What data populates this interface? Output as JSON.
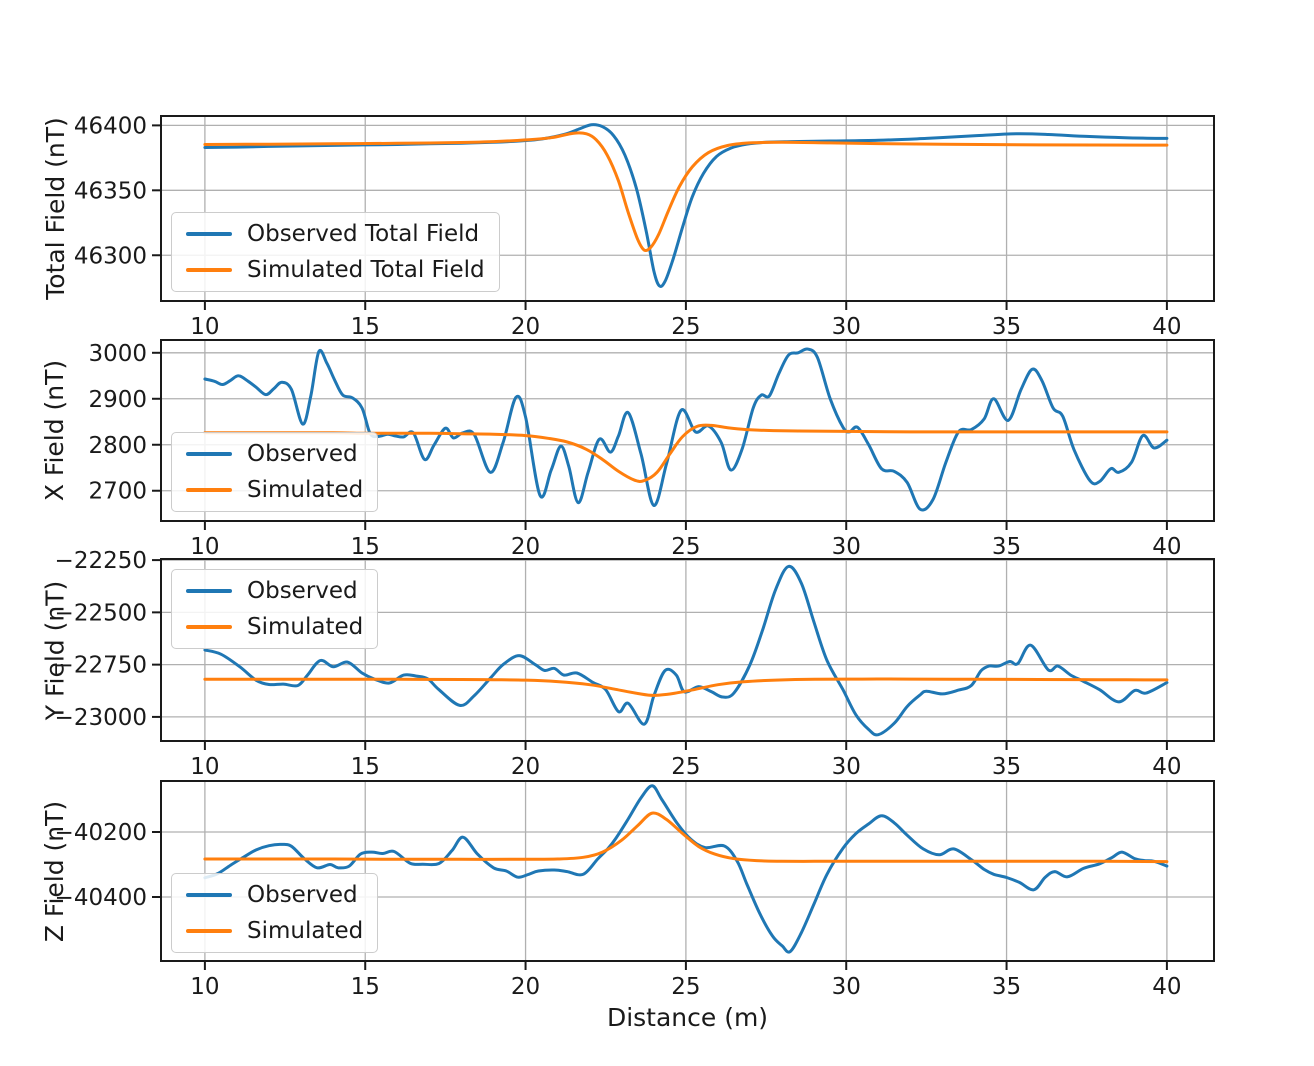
{
  "figure": {
    "xlabel": "Distance (m)",
    "background": "#ffffff",
    "colors": {
      "observed": "#1f77b4",
      "simulated": "#ff7f0e",
      "grid": "#b0b0b0",
      "spine": "#1a1a1a",
      "text": "#1a1a1a",
      "legend_border": "#cccccc"
    }
  },
  "chart_data": [
    {
      "type": "line",
      "ylabel": "Total Field (nT)",
      "xlim": [
        8.6,
        41.5
      ],
      "ylim": [
        46264,
        46408
      ],
      "xticks": [
        10,
        15,
        20,
        25,
        30,
        35,
        40
      ],
      "yticks": [
        46300,
        46350,
        46400
      ],
      "grid": true,
      "legend": {
        "position": "lower-left",
        "entries": [
          "Observed Total Field",
          "Simulated Total Field"
        ]
      },
      "series": [
        {
          "name": "Observed Total Field",
          "color": "#1f77b4",
          "x": [
            10,
            11,
            12,
            13,
            14,
            15,
            16,
            17,
            18,
            19,
            19.8,
            20.5,
            21.2,
            21.7,
            22.05,
            22.4,
            22.75,
            23.1,
            23.45,
            23.75,
            24.0,
            24.17,
            24.35,
            24.6,
            24.9,
            25.2,
            25.55,
            25.95,
            26.4,
            26.9,
            27.5,
            28.3,
            29.5,
            31,
            32.5,
            34,
            35.3,
            36.3,
            37.5,
            38.7,
            40
          ],
          "y": [
            46383,
            46383.3,
            46383.8,
            46384.2,
            46384.6,
            46385,
            46385.3,
            46385.8,
            46386.3,
            46387,
            46388,
            46389.5,
            46393,
            46397.5,
            46400.5,
            46399,
            46392,
            46377,
            46352,
            46320,
            46288,
            46276.5,
            46280,
            46297,
            46322,
            46345,
            46363,
            46376,
            46382.5,
            46385.5,
            46387,
            46387.5,
            46388,
            46388.5,
            46390,
            46392,
            46393.5,
            46393,
            46391.5,
            46390.5,
            46390
          ]
        },
        {
          "name": "Simulated Total Field",
          "color": "#ff7f0e",
          "x": [
            10,
            12,
            14,
            16,
            17.5,
            19,
            20,
            20.8,
            21.5,
            21.9,
            22.2,
            22.55,
            22.9,
            23.2,
            23.5,
            23.7,
            23.9,
            24.15,
            24.45,
            24.8,
            25.2,
            25.7,
            26.3,
            27,
            28,
            29.5,
            31,
            33,
            36,
            40
          ],
          "y": [
            46385.3,
            46385.5,
            46385.8,
            46386.2,
            46386.6,
            46387.5,
            46388.8,
            46390.5,
            46394,
            46393.5,
            46389,
            46377,
            46357,
            46333,
            46312,
            46304,
            46306,
            46316,
            46334,
            46353,
            46368,
            46379,
            46384.5,
            46386.5,
            46387,
            46386.5,
            46386,
            46385.5,
            46385,
            46384.8
          ]
        }
      ]
    },
    {
      "type": "line",
      "ylabel": "X Field (nT)",
      "xlim": [
        8.6,
        41.5
      ],
      "ylim": [
        2632,
        3030
      ],
      "xticks": [
        10,
        15,
        20,
        25,
        30,
        35,
        40
      ],
      "yticks": [
        2700,
        2800,
        2900,
        3000
      ],
      "grid": true,
      "legend": {
        "position": "lower-left",
        "entries": [
          "Observed",
          "Simulated"
        ]
      },
      "series": [
        {
          "name": "Observed",
          "color": "#1f77b4",
          "x": [
            10,
            10.3,
            10.55,
            10.8,
            11.05,
            11.35,
            11.6,
            11.9,
            12.15,
            12.4,
            12.7,
            13.05,
            13.3,
            13.55,
            13.8,
            14.05,
            14.3,
            14.6,
            14.9,
            15.15,
            15.4,
            15.7,
            15.95,
            16.2,
            16.5,
            16.85,
            17.15,
            17.5,
            17.75,
            18.05,
            18.4,
            18.9,
            19.3,
            19.7,
            20.0,
            20.45,
            20.8,
            21.1,
            21.35,
            21.64,
            21.95,
            22.3,
            22.65,
            22.9,
            23.2,
            23.6,
            24.0,
            24.4,
            24.85,
            25.3,
            25.7,
            26.1,
            26.4,
            26.75,
            27.1,
            27.35,
            27.6,
            27.9,
            28.2,
            28.5,
            28.8,
            29.1,
            29.5,
            29.9,
            30.1,
            30.35,
            30.7,
            31.1,
            31.5,
            31.9,
            32.3,
            32.7,
            33.1,
            33.5,
            33.9,
            34.3,
            34.6,
            35.05,
            35.45,
            35.8,
            36.1,
            36.45,
            36.75,
            37.1,
            37.6,
            37.9,
            38.25,
            38.5,
            38.9,
            39.25,
            39.6,
            40
          ],
          "y": [
            2943,
            2938,
            2931,
            2940,
            2950,
            2938,
            2925,
            2909,
            2922,
            2936,
            2920,
            2845,
            2905,
            3002,
            2978,
            2940,
            2908,
            2902,
            2880,
            2825,
            2818,
            2823,
            2819,
            2817,
            2826,
            2768,
            2800,
            2836,
            2815,
            2826,
            2822,
            2740,
            2805,
            2903,
            2860,
            2690,
            2745,
            2797,
            2752,
            2674,
            2740,
            2812,
            2784,
            2820,
            2870,
            2780,
            2668,
            2760,
            2875,
            2828,
            2841,
            2805,
            2745,
            2790,
            2880,
            2908,
            2906,
            2955,
            2995,
            3000,
            3008,
            2990,
            2900,
            2838,
            2828,
            2838,
            2800,
            2748,
            2742,
            2718,
            2660,
            2680,
            2760,
            2828,
            2833,
            2856,
            2900,
            2853,
            2920,
            2964,
            2940,
            2880,
            2862,
            2790,
            2722,
            2720,
            2748,
            2740,
            2762,
            2820,
            2793,
            2810
          ]
        },
        {
          "name": "Simulated",
          "color": "#ff7f0e",
          "x": [
            10,
            12,
            14,
            15,
            16,
            17,
            18,
            19,
            20,
            20.7,
            21.3,
            21.9,
            22.4,
            22.9,
            23.4,
            23.7,
            24.1,
            24.5,
            24.9,
            25.35,
            25.8,
            26.3,
            26.9,
            27.6,
            28.5,
            30,
            32,
            34,
            36,
            38,
            40
          ],
          "y": [
            2826,
            2826,
            2826,
            2825,
            2825,
            2825,
            2824,
            2823,
            2820,
            2814,
            2806,
            2790,
            2768,
            2742,
            2723,
            2722,
            2740,
            2780,
            2818,
            2840,
            2842,
            2837,
            2833,
            2831,
            2830,
            2829,
            2828,
            2828,
            2828,
            2828,
            2828
          ]
        }
      ]
    },
    {
      "type": "line",
      "ylabel": "Y Field (nT)",
      "xlim": [
        8.6,
        41.5
      ],
      "ylim": [
        -23120,
        -22240
      ],
      "xticks": [
        10,
        15,
        20,
        25,
        30,
        35,
        40
      ],
      "yticks": [
        -23000,
        -22750,
        -22500,
        -22250
      ],
      "grid": true,
      "legend": {
        "position": "upper-left",
        "entries": [
          "Observed",
          "Simulated"
        ]
      },
      "series": [
        {
          "name": "Observed",
          "color": "#1f77b4",
          "x": [
            10,
            10.5,
            11.1,
            11.6,
            12.0,
            12.45,
            12.9,
            13.2,
            13.6,
            14.0,
            14.45,
            14.9,
            15.3,
            15.75,
            16.2,
            16.6,
            16.95,
            17.3,
            17.95,
            18.4,
            18.9,
            19.3,
            19.8,
            20.3,
            20.6,
            20.9,
            21.2,
            21.6,
            22.1,
            22.5,
            22.9,
            23.2,
            23.7,
            24.0,
            24.35,
            24.7,
            24.95,
            25.4,
            25.8,
            26.15,
            26.5,
            27.0,
            27.4,
            27.8,
            28.2,
            28.6,
            29.0,
            29.4,
            29.9,
            30.3,
            30.7,
            31.0,
            31.5,
            31.9,
            32.3,
            32.5,
            33.0,
            33.5,
            33.9,
            34.2,
            34.45,
            34.75,
            35.1,
            35.35,
            35.75,
            36.3,
            36.6,
            37.0,
            37.4,
            37.9,
            38.5,
            39.0,
            39.35,
            40
          ],
          "y": [
            -22680,
            -22700,
            -22762,
            -22825,
            -22845,
            -22843,
            -22850,
            -22800,
            -22730,
            -22760,
            -22738,
            -22790,
            -22820,
            -22838,
            -22800,
            -22805,
            -22818,
            -22870,
            -22945,
            -22898,
            -22815,
            -22750,
            -22707,
            -22750,
            -22778,
            -22768,
            -22800,
            -22790,
            -22835,
            -22870,
            -22975,
            -22935,
            -23035,
            -22900,
            -22778,
            -22800,
            -22880,
            -22855,
            -22880,
            -22905,
            -22885,
            -22750,
            -22580,
            -22390,
            -22280,
            -22360,
            -22550,
            -22730,
            -22870,
            -22990,
            -23060,
            -23085,
            -23030,
            -22950,
            -22895,
            -22877,
            -22890,
            -22872,
            -22850,
            -22780,
            -22757,
            -22757,
            -22735,
            -22745,
            -22657,
            -22775,
            -22757,
            -22800,
            -22830,
            -22870,
            -22928,
            -22873,
            -22886,
            -22836
          ]
        },
        {
          "name": "Simulated",
          "color": "#ff7f0e",
          "x": [
            10,
            12,
            14,
            16,
            18,
            19,
            20,
            21,
            22,
            22.8,
            23.5,
            24.0,
            24.6,
            25.3,
            26.0,
            26.8,
            27.8,
            29,
            30.5,
            32,
            34,
            36,
            38,
            40
          ],
          "y": [
            -22820,
            -22820,
            -22820,
            -22820,
            -22821,
            -22822,
            -22824,
            -22831,
            -22846,
            -22868,
            -22888,
            -22897,
            -22888,
            -22868,
            -22846,
            -22832,
            -22824,
            -22820,
            -22819,
            -22819,
            -22820,
            -22821,
            -22822,
            -22823
          ]
        }
      ]
    },
    {
      "type": "line",
      "ylabel": "Z Field (nT)",
      "xlabel": "Distance (m)",
      "xlim": [
        8.6,
        41.5
      ],
      "ylim": [
        -40600,
        -40040
      ],
      "xticks": [
        10,
        15,
        20,
        25,
        30,
        35,
        40
      ],
      "yticks": [
        -40400,
        -40200
      ],
      "grid": true,
      "legend": {
        "position": "lower-left",
        "entries": [
          "Observed",
          "Simulated"
        ]
      },
      "series": [
        {
          "name": "Observed",
          "color": "#1f77b4",
          "x": [
            10,
            10.4,
            10.8,
            11.2,
            11.6,
            12.0,
            12.4,
            12.7,
            13.1,
            13.5,
            13.9,
            14.15,
            14.5,
            14.85,
            15.2,
            15.55,
            15.9,
            16.4,
            16.8,
            17.3,
            17.7,
            18.05,
            18.5,
            19.0,
            19.4,
            19.76,
            20.1,
            20.4,
            20.9,
            21.3,
            21.8,
            22.25,
            22.56,
            22.8,
            23.2,
            23.6,
            23.95,
            24.25,
            24.74,
            25.15,
            25.6,
            26.2,
            26.6,
            26.9,
            27.3,
            27.7,
            28.0,
            28.25,
            28.6,
            29.0,
            29.4,
            29.9,
            30.3,
            30.7,
            31.1,
            31.5,
            31.9,
            32.4,
            32.9,
            33.35,
            33.9,
            34.3,
            34.6,
            35.0,
            35.4,
            35.85,
            36.2,
            36.5,
            36.9,
            37.4,
            37.9,
            38.3,
            38.6,
            39.0,
            39.3,
            39.6,
            40
          ],
          "y": [
            -40341,
            -40328,
            -40302,
            -40278,
            -40255,
            -40242,
            -40238,
            -40244,
            -40282,
            -40310,
            -40300,
            -40310,
            -40305,
            -40268,
            -40262,
            -40266,
            -40260,
            -40296,
            -40299,
            -40297,
            -40258,
            -40216,
            -40268,
            -40310,
            -40320,
            -40339,
            -40330,
            -40320,
            -40317,
            -40322,
            -40330,
            -40283,
            -40252,
            -40222,
            -40160,
            -40095,
            -40058,
            -40100,
            -40175,
            -40222,
            -40248,
            -40243,
            -40290,
            -40360,
            -40450,
            -40520,
            -40550,
            -40568,
            -40510,
            -40420,
            -40330,
            -40250,
            -40205,
            -40175,
            -40150,
            -40172,
            -40210,
            -40252,
            -40270,
            -40252,
            -40285,
            -40315,
            -40330,
            -40340,
            -40355,
            -40378,
            -40340,
            -40322,
            -40338,
            -40312,
            -40298,
            -40278,
            -40262,
            -40282,
            -40288,
            -40290,
            -40305
          ]
        },
        {
          "name": "Simulated",
          "color": "#ff7f0e",
          "x": [
            10,
            12,
            14,
            16,
            18,
            20,
            21,
            21.8,
            22.4,
            23.0,
            23.5,
            23.95,
            24.4,
            24.9,
            25.4,
            25.9,
            26.5,
            27.2,
            28,
            29,
            30,
            32,
            34,
            36,
            38,
            40
          ],
          "y": [
            -40283,
            -40283,
            -40283,
            -40284,
            -40284,
            -40284,
            -40283,
            -40278,
            -40262,
            -40225,
            -40180,
            -40142,
            -40162,
            -40205,
            -40245,
            -40268,
            -40282,
            -40288,
            -40290,
            -40290,
            -40290,
            -40290,
            -40290,
            -40290,
            -40290,
            -40291
          ]
        }
      ]
    }
  ]
}
